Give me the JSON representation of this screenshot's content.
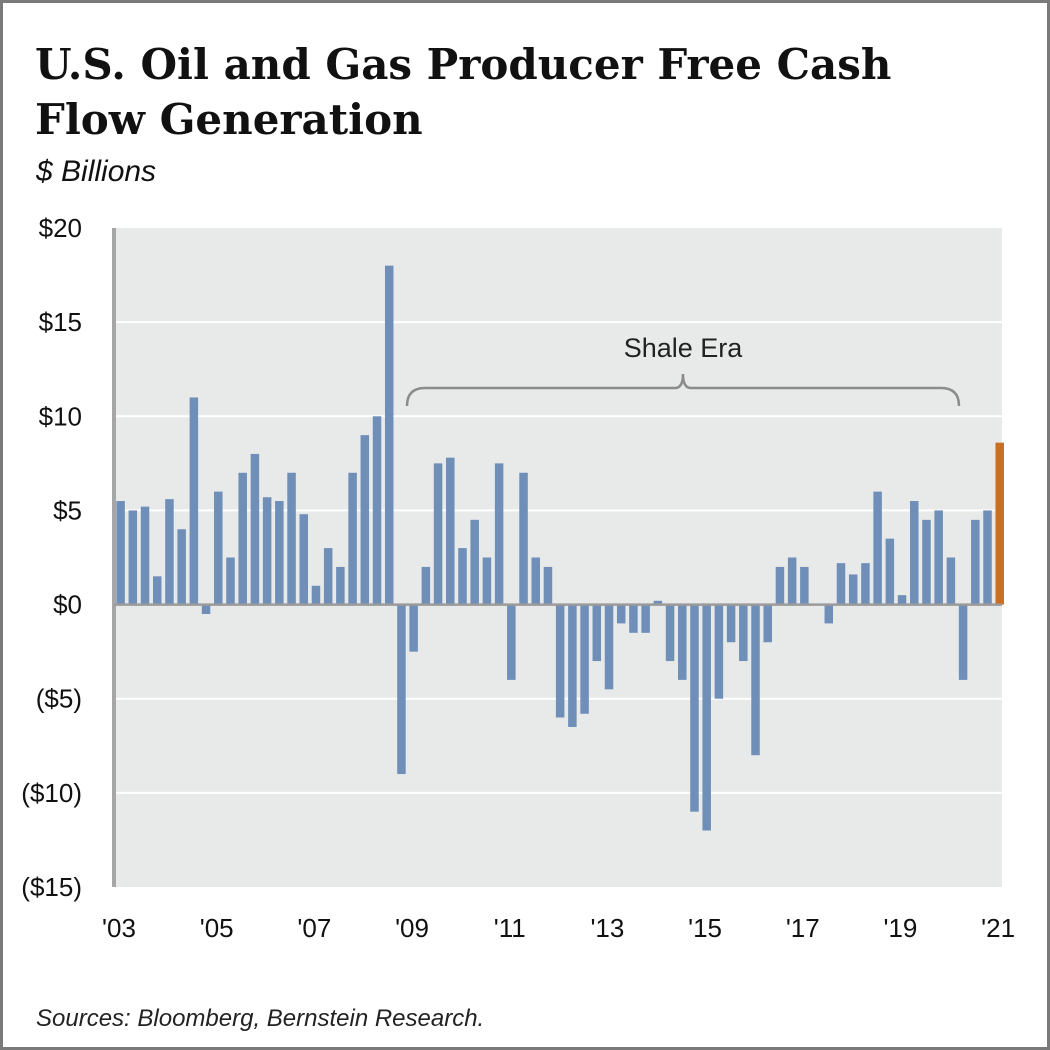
{
  "header": {
    "title": "U.S. Oil and Gas Producer Free Cash Flow Generation",
    "subtitle": "$ Billions"
  },
  "footer": {
    "source": "Sources: Bloomberg, Bernstein Research."
  },
  "chart_data": {
    "type": "bar",
    "title": "U.S. Oil and Gas Producer Free Cash Flow Generation",
    "subtitle": "$ Billions",
    "ylim": [
      -15,
      20
    ],
    "ytick_values": [
      20,
      15,
      10,
      5,
      0,
      -5,
      -10,
      -15
    ],
    "ytick_labels": [
      "$20",
      "$15",
      "$10",
      "$5",
      "$0",
      "($5)",
      "($10)",
      "($15)"
    ],
    "xtick_labels": [
      "'03",
      "'05",
      "'07",
      "'09",
      "'11",
      "'13",
      "'15",
      "'17",
      "'19",
      "'21"
    ],
    "xtick_years": [
      2003,
      2005,
      2007,
      2009,
      2011,
      2013,
      2015,
      2017,
      2019,
      2021
    ],
    "grid": true,
    "colors": {
      "bar": "#6f8fb9",
      "highlight": "#c96f22",
      "plot_bg": "#e8e9e9",
      "zero_line": "#9a9a9a"
    },
    "annotation": {
      "text": "Shale Era",
      "span": [
        "2009Q1",
        "2020Q2"
      ]
    },
    "series": [
      {
        "x": [
          "2003Q1",
          "2003Q2",
          "2003Q3",
          "2003Q4",
          "2004Q1",
          "2004Q2",
          "2004Q3",
          "2004Q4",
          "2005Q1",
          "2005Q2",
          "2005Q3",
          "2005Q4",
          "2006Q1",
          "2006Q2",
          "2006Q3",
          "2006Q4",
          "2007Q1",
          "2007Q2",
          "2007Q3",
          "2007Q4",
          "2008Q1",
          "2008Q2",
          "2008Q3",
          "2008Q4",
          "2009Q1",
          "2009Q2",
          "2009Q3",
          "2009Q4",
          "2010Q1",
          "2010Q2",
          "2010Q3",
          "2010Q4",
          "2011Q1",
          "2011Q2",
          "2011Q3",
          "2011Q4",
          "2012Q1",
          "2012Q2",
          "2012Q3",
          "2012Q4",
          "2013Q1",
          "2013Q2",
          "2013Q3",
          "2013Q4",
          "2014Q1",
          "2014Q2",
          "2014Q3",
          "2014Q4",
          "2015Q1",
          "2015Q2",
          "2015Q3",
          "2015Q4",
          "2016Q1",
          "2016Q2",
          "2016Q3",
          "2016Q4",
          "2017Q1",
          "2017Q2",
          "2017Q3",
          "2017Q4",
          "2018Q1",
          "2018Q2",
          "2018Q3",
          "2018Q4",
          "2019Q1",
          "2019Q2",
          "2019Q3",
          "2019Q4",
          "2020Q1",
          "2020Q2",
          "2020Q3",
          "2020Q4",
          "2021Q1"
        ],
        "values": [
          5.5,
          5.0,
          5.2,
          1.5,
          5.6,
          4.0,
          11.0,
          -0.5,
          6.0,
          2.5,
          7.0,
          8.0,
          5.7,
          5.5,
          7.0,
          4.8,
          1.0,
          3.0,
          2.0,
          7.0,
          9.0,
          10.0,
          18.0,
          -9.0,
          -2.5,
          2.0,
          7.5,
          7.8,
          3.0,
          4.5,
          2.5,
          7.5,
          -4.0,
          7.0,
          2.5,
          2.0,
          -6.0,
          -6.5,
          -5.8,
          -3.0,
          -4.5,
          -1.0,
          -1.5,
          -1.5,
          0.2,
          -3.0,
          -4.0,
          -11.0,
          -12.0,
          -5.0,
          -2.0,
          -3.0,
          -8.0,
          -2.0,
          2.0,
          2.5,
          2.0,
          0.0,
          -1.0,
          2.2,
          1.6,
          2.2,
          6.0,
          3.5,
          0.5,
          5.5,
          4.5,
          5.0,
          2.5,
          -4.0,
          4.5,
          5.0,
          8.6
        ],
        "highlight_last": true
      }
    ]
  }
}
